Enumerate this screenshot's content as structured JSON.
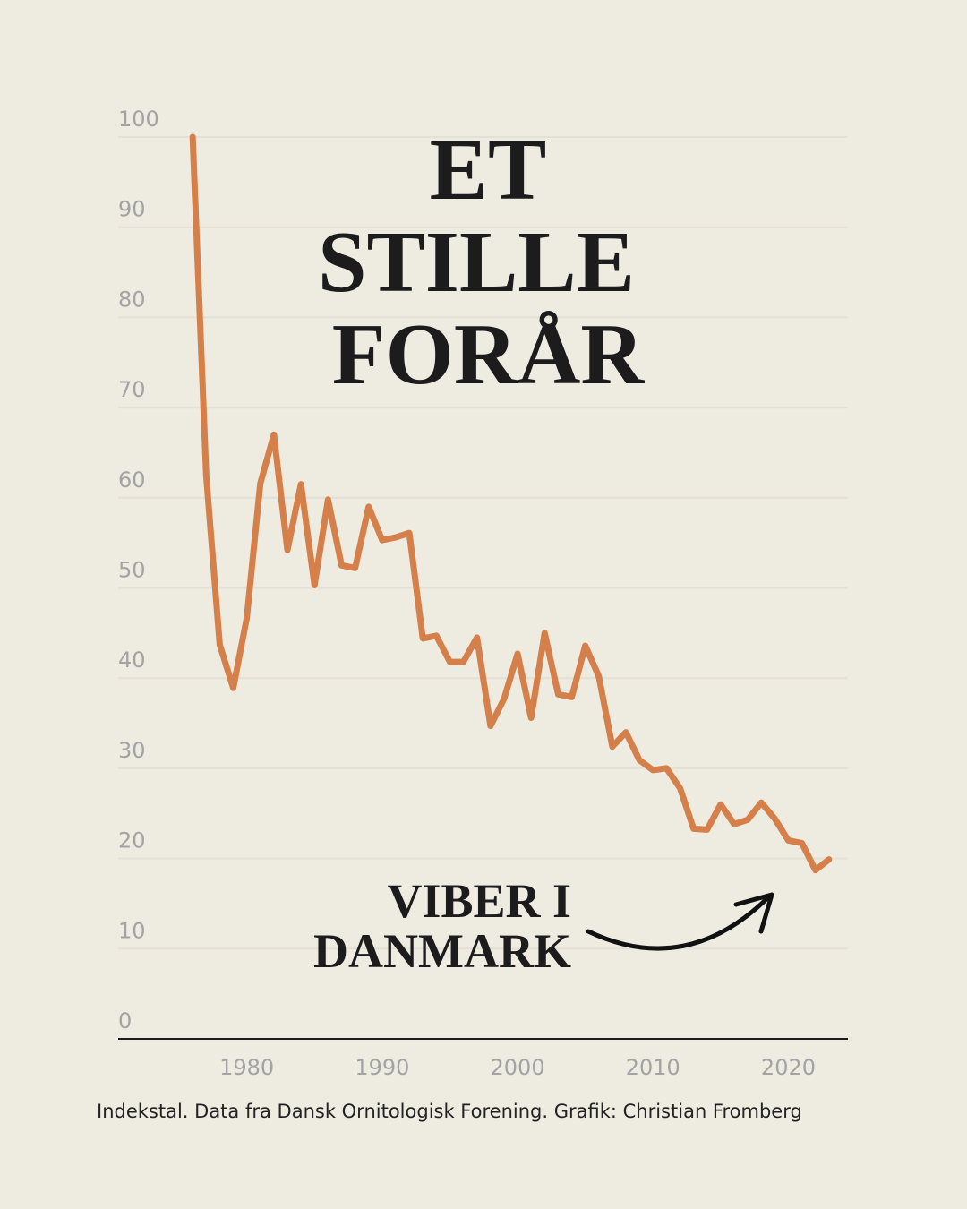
{
  "chart_data": {
    "type": "line",
    "title_lines": [
      "ET",
      "STILLE",
      "FORÅR"
    ],
    "annotation_lines": [
      "VIBER I",
      "DANMARK"
    ],
    "source": "Indekstal. Data fra Dansk Ornitologisk Forening. Grafik: Christian Fromberg",
    "x": [
      1976,
      1977,
      1978,
      1979,
      1980,
      1981,
      1982,
      1983,
      1984,
      1985,
      1986,
      1987,
      1988,
      1989,
      1990,
      1991,
      1992,
      1993,
      1994,
      1995,
      1996,
      1997,
      1998,
      1999,
      2000,
      2001,
      2002,
      2003,
      2004,
      2005,
      2006,
      2007,
      2008,
      2009,
      2010,
      2011,
      2012,
      2013,
      2014,
      2015,
      2016,
      2017,
      2018,
      2019,
      2020,
      2021,
      2022,
      2023
    ],
    "series": [
      {
        "color": "#d5804a",
        "values": [
          100,
          62.5,
          43.7,
          38.9,
          46.7,
          61.6,
          67,
          54.2,
          61.5,
          50.3,
          59.8,
          52.5,
          52.2,
          59,
          55.3,
          55.6,
          56.1,
          44.4,
          44.7,
          41.8,
          41.8,
          44.5,
          34.7,
          37.7,
          42.7,
          35.6,
          45,
          38.2,
          37.9,
          43.6,
          40.2,
          32.4,
          34,
          30.9,
          29.8,
          30,
          27.8,
          23.3,
          23.2,
          26,
          23.8,
          24.3,
          26.2,
          24.4,
          22,
          21.7,
          18.7,
          19.9
        ]
      }
    ],
    "xlim": [
      1970.5,
      2024.4
    ],
    "xticks": [
      1980,
      1990,
      2000,
      2010,
      2020
    ],
    "ylim": [
      0,
      100
    ],
    "yticks": [
      0,
      10,
      20,
      30,
      40,
      50,
      60,
      70,
      80,
      90,
      100
    ],
    "grid": true
  }
}
